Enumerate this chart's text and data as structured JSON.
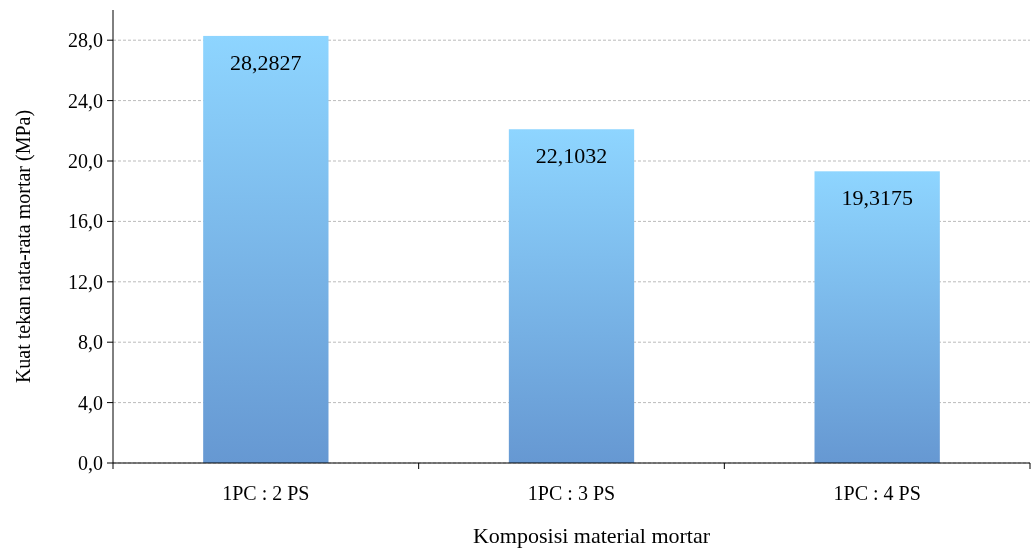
{
  "chart_data": {
    "type": "bar",
    "xlabel": "Komposisi material mortar",
    "ylabel": "Kuat tekan rata-rata mortar (MPa)",
    "categories": [
      "1PC : 2 PS",
      "1PC : 3 PS",
      "1PC : 4 PS"
    ],
    "values": [
      28.2827,
      22.1032,
      19.3175
    ],
    "value_labels": [
      "28,2827",
      "22,1032",
      "19,3175"
    ],
    "color": "#6fa6e6",
    "ylim": [
      0,
      30
    ],
    "yticks": [
      {
        "value": 0,
        "label": "0,0"
      },
      {
        "value": 4,
        "label": "4,0"
      },
      {
        "value": 8,
        "label": "8,0"
      },
      {
        "value": 12,
        "label": "12,0"
      },
      {
        "value": 16,
        "label": "16,0"
      },
      {
        "value": 20,
        "label": "20,0"
      },
      {
        "value": 24,
        "label": "24,0"
      },
      {
        "value": 28,
        "label": "28,0"
      }
    ],
    "grid": "y"
  }
}
